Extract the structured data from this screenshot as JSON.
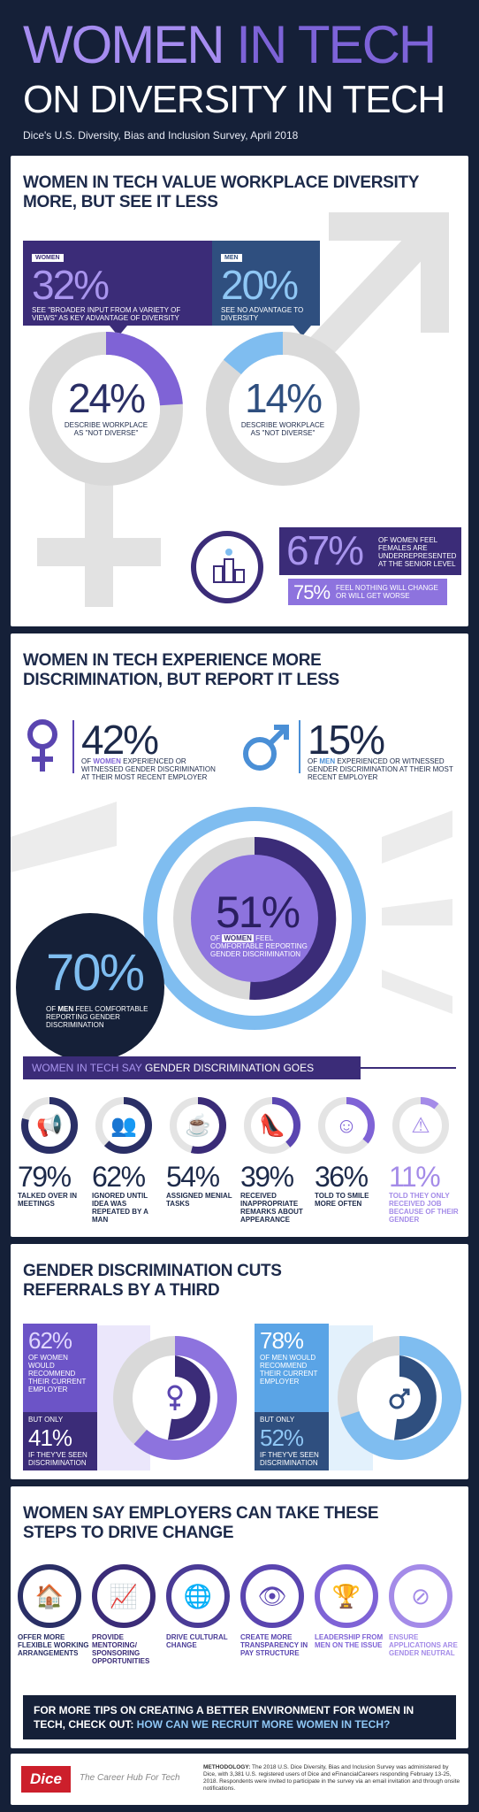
{
  "header": {
    "title_part1": "WOMEN",
    "title_part2": " IN TECH",
    "title_line2": "ON DIVERSITY IN TECH",
    "subtitle": "Dice's U.S. Diversity, Bias and Inclusion Survey, April 2018"
  },
  "section1": {
    "title_line1": "WOMEN IN TECH VALUE WORKPLACE DIVERSITY",
    "title_line2": "MORE, BUT SEE IT LESS",
    "women_tag": "WOMEN",
    "women_pct": "32%",
    "women_text": "SEE \"BROADER INPUT FROM A VARIETY OF VIEWS\" AS KEY ADVANTAGE OF DIVERSITY",
    "men_tag": "MEN",
    "men_pct": "20%",
    "men_text": "SEE NO ADVANTAGE TO DIVERSITY",
    "women_ring_pct": "24%",
    "women_ring_text": "DESCRIBE WORKPLACE AS \"NOT DIVERSE\"",
    "men_ring_pct": "14%",
    "men_ring_text": "DESCRIBE WORKPLACE AS \"NOT DIVERSE\"",
    "stat67_pct": "67%",
    "stat67_text": "OF WOMEN FEEL FEMALES ARE UNDERREPRESENTED AT THE SENIOR LEVEL",
    "stat75_pct": "75%",
    "stat75_text": "FEEL NOTHING WILL CHANGE OR WILL GET WORSE"
  },
  "section2": {
    "title_line1": "WOMEN IN TECH EXPERIENCE MORE",
    "title_line2": "DISCRIMINATION, BUT REPORT IT LESS",
    "women_pct": "42%",
    "women_text_pre": "OF ",
    "women_text_word": "WOMEN",
    "women_text_post": " EXPERIENCED OR WITNESSED GENDER DISCRIMINATION AT THEIR MOST RECENT EMPLOYER",
    "men_pct": "15%",
    "men_text_pre": "OF ",
    "men_text_word": "MEN",
    "men_text_post": " EXPERIENCED OR WITNESSED GENDER DISCRIMINATION AT THEIR MOST RECENT EMPLOYER",
    "center_pct": "51%",
    "center_text_pre": "OF ",
    "center_text_word": "WOMEN",
    "center_text_post": " FEEL COMFORTABLE REPORTING GENDER DISCRIMINATION",
    "men70_pct": "70%",
    "men70_text_pre": "OF ",
    "men70_text_word": "MEN",
    "men70_text_post": " FEEL COMFORTABLE REPORTING GENDER DISCRIMINATION",
    "banner_part1": "WOMEN IN TECH SAY",
    "banner_part2": " GENDER DISCRIMINATION GOES BEYOND PAY",
    "items": [
      {
        "pct": "79%",
        "text": "TALKED OVER IN MEETINGS",
        "icon": "megaphone-icon",
        "level": 0.79
      },
      {
        "pct": "62%",
        "text": "IGNORED UNTIL IDEA WAS REPEATED BY A MAN",
        "icon": "people-icon",
        "level": 0.62
      },
      {
        "pct": "54%",
        "text": "ASSIGNED MENIAL TASKS",
        "icon": "coffee-icon",
        "level": 0.54
      },
      {
        "pct": "39%",
        "text": "RECEIVED INAPPROPRIATE REMARKS ABOUT APPEARANCE",
        "icon": "heel-icon",
        "level": 0.39
      },
      {
        "pct": "36%",
        "text": "TOLD TO SMILE MORE OFTEN",
        "icon": "smile-icon",
        "level": 0.36
      },
      {
        "pct": "11%",
        "text": "TOLD THEY ONLY RECEIVED JOB BECAUSE OF THEIR GENDER",
        "icon": "warning-female-icon",
        "level": 0.11
      }
    ]
  },
  "section3": {
    "title_line1": "GENDER DISCRIMINATION CUTS",
    "title_line2": "REFERRALS BY A THIRD",
    "women_pct": "62%",
    "women_text": "OF WOMEN WOULD RECOMMEND THEIR CURRENT EMPLOYER",
    "women_but": "BUT ONLY",
    "women_pct2": "41%",
    "women_text2": "IF THEY'VE SEEN DISCRIMINATION",
    "men_pct": "78%",
    "men_text": "OF MEN WOULD RECOMMEND THEIR CURRENT EMPLOYER",
    "men_but": "BUT ONLY",
    "men_pct2": "52%",
    "men_text2": "IF THEY'VE SEEN DISCRIMINATION"
  },
  "section4": {
    "title_line1": "WOMEN SAY EMPLOYERS CAN TAKE THESE",
    "title_line2": "STEPS TO DRIVE CHANGE",
    "steps": [
      {
        "text": "OFFER MORE FLEXIBLE WORKING ARRANGEMENTS",
        "icon": "briefcase-home-icon"
      },
      {
        "text": "PROVIDE MENTORING/ SPONSORING OPPORTUNITIES",
        "icon": "mentor-icon"
      },
      {
        "text": "DRIVE CULTURAL CHANGE",
        "icon": "globe-people-icon"
      },
      {
        "text": "CREATE MORE TRANSPARENCY IN PAY STRUCTURE",
        "icon": "eye-money-icon"
      },
      {
        "text": "LEADERSHIP FROM MEN ON THE ISSUE",
        "icon": "podium-icon"
      },
      {
        "text": "ENSURE APPLICATIONS ARE GENDER NEUTRAL",
        "icon": "no-gender-icon"
      }
    ],
    "cta_line1": "FOR MORE TIPS ON CREATING A BETTER ENVIRONMENT FOR WOMEN IN",
    "cta_line2_pre": "TECH, CHECK OUT: ",
    "cta_link": "HOW CAN WE RECRUIT MORE WOMEN IN TECH?"
  },
  "footer": {
    "logo": "Dice",
    "tagline": "The Career Hub For Tech",
    "method_label": "METHODOLOGY:",
    "method_text": " The 2018 U.S. Dice Diversity, Bias and Inclusion Survey was administered by Dice, with 3,381 U.S. registered users of Dice and eFinancialCareers responding February 13-25, 2018. Respondents were invited to participate in the survey via an email invitation and through onsite notifications."
  },
  "colors": {
    "navy": "#152038",
    "purple_dark": "#3b2c78",
    "purple": "#7f63d6",
    "purple_light": "#a48be8",
    "blue": "#7fbdf0",
    "blue_dark": "#2f4f7f",
    "gray": "#dcdcdc"
  }
}
